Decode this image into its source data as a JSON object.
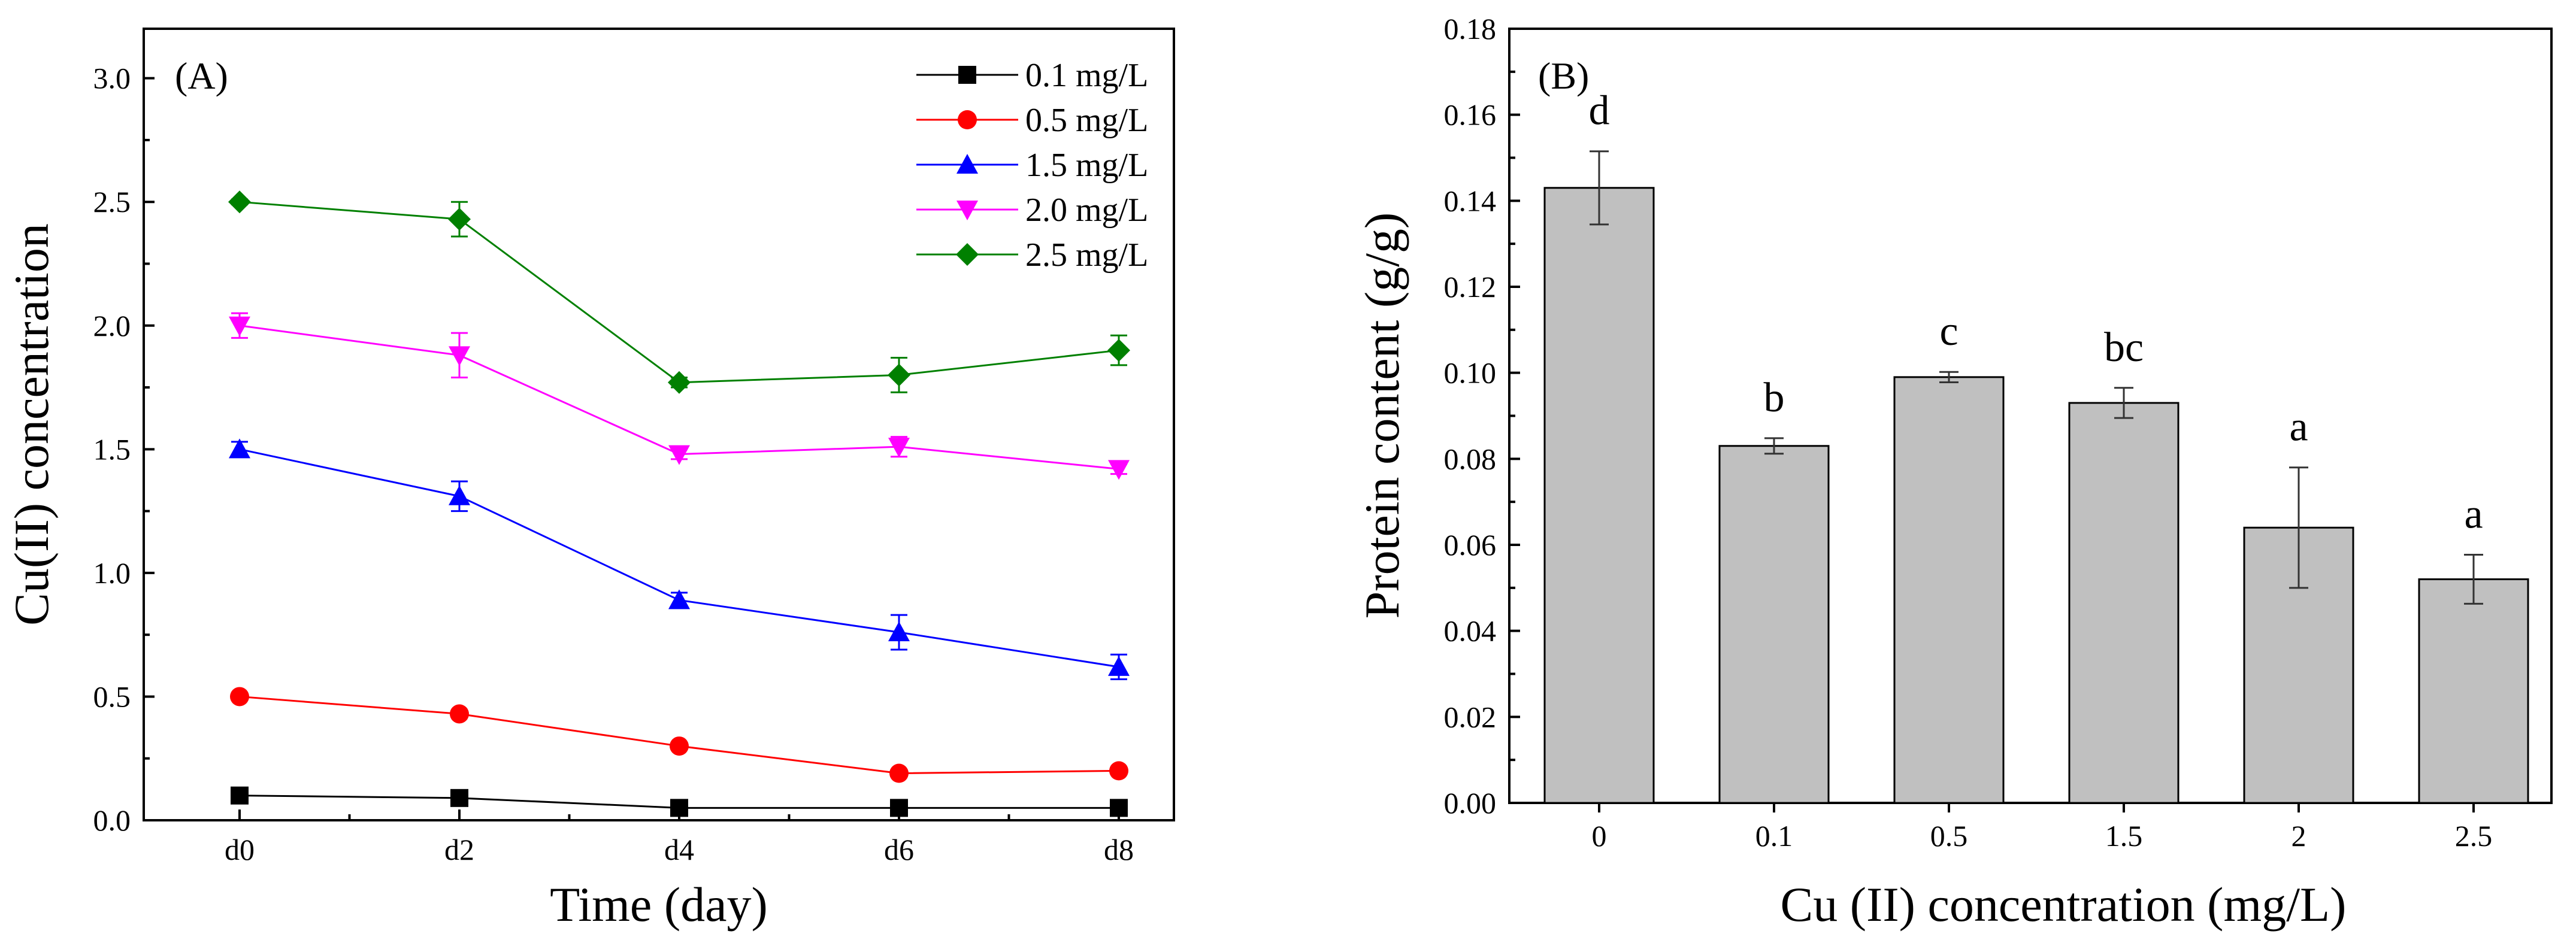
{
  "chart_data": [
    {
      "type": "line",
      "panel_label": "(A)",
      "xlabel": "Time (day)",
      "ylabel": "Cu(II) concentration",
      "categories": [
        "d0",
        "d2",
        "d4",
        "d6",
        "d8"
      ],
      "ylim": [
        0,
        3.2
      ],
      "yticks": [
        "0.0",
        "0.5",
        "1.0",
        "1.5",
        "2.0",
        "2.5",
        "3.0"
      ],
      "legend_position": "top-right",
      "series": [
        {
          "name": "0.1 mg/L",
          "color": "#000000",
          "marker": "square",
          "values": [
            0.1,
            0.09,
            0.05,
            0.05,
            0.05
          ],
          "errors": [
            0.01,
            0.01,
            0.01,
            0.01,
            0.01
          ]
        },
        {
          "name": "0.5 mg/L",
          "color": "#ff0000",
          "marker": "circle",
          "values": [
            0.5,
            0.43,
            0.3,
            0.19,
            0.2
          ],
          "errors": [
            0.01,
            0.01,
            0.01,
            0.01,
            0.01
          ]
        },
        {
          "name": "1.5 mg/L",
          "color": "#0000ff",
          "marker": "triangle-up",
          "values": [
            1.5,
            1.31,
            0.89,
            0.76,
            0.62
          ],
          "errors": [
            0.03,
            0.06,
            0.03,
            0.07,
            0.05
          ]
        },
        {
          "name": "2.0 mg/L",
          "color": "#ff00ff",
          "marker": "triangle-down",
          "values": [
            2.0,
            1.88,
            1.48,
            1.51,
            1.42
          ],
          "errors": [
            0.05,
            0.09,
            0.02,
            0.04,
            0.02
          ]
        },
        {
          "name": "2.5 mg/L",
          "color": "#008000",
          "marker": "diamond",
          "values": [
            2.5,
            2.43,
            1.77,
            1.8,
            1.9
          ],
          "errors": [
            0.01,
            0.07,
            0.02,
            0.07,
            0.06
          ]
        }
      ]
    },
    {
      "type": "bar",
      "panel_label": "(B)",
      "xlabel": "Cu (II) concentration (mg/L)",
      "ylabel": "Protein content (g/g)",
      "categories": [
        "0",
        "0.1",
        "0.5",
        "1.5",
        "2",
        "2.5"
      ],
      "values": [
        0.143,
        0.083,
        0.099,
        0.093,
        0.064,
        0.052
      ],
      "errors": [
        0.0085,
        0.0018,
        0.0012,
        0.0035,
        0.014,
        0.0057
      ],
      "significance_labels": [
        "d",
        "b",
        "c",
        "bc",
        "a",
        "a"
      ],
      "ylim": [
        0,
        0.18
      ],
      "yticks": [
        "0.00",
        "0.02",
        "0.04",
        "0.06",
        "0.08",
        "0.10",
        "0.12",
        "0.14",
        "0.16",
        "0.18"
      ],
      "bar_color": "#c0c0c0"
    }
  ]
}
